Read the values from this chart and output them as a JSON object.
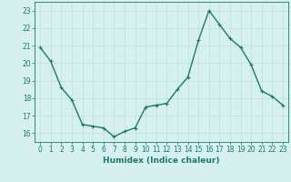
{
  "x": [
    0,
    1,
    2,
    3,
    4,
    5,
    6,
    7,
    8,
    9,
    10,
    11,
    12,
    13,
    14,
    15,
    16,
    17,
    18,
    19,
    20,
    21,
    22,
    23
  ],
  "y": [
    20.9,
    20.1,
    18.6,
    17.9,
    16.5,
    16.4,
    16.3,
    15.8,
    16.1,
    16.3,
    17.5,
    17.6,
    17.7,
    18.5,
    19.2,
    21.3,
    23.0,
    22.2,
    21.4,
    20.9,
    19.9,
    18.4,
    18.1,
    17.6
  ],
  "line_color": "#1a7a6e",
  "marker": "+",
  "marker_size": 3,
  "background_color": "#d6f0ef",
  "grid_color": "#c0dedd",
  "xlabel": "Humidex (Indice chaleur)",
  "xlim": [
    -0.5,
    23.5
  ],
  "ylim": [
    15.5,
    23.5
  ],
  "yticks": [
    16,
    17,
    18,
    19,
    20,
    21,
    22,
    23
  ],
  "xticks": [
    0,
    1,
    2,
    3,
    4,
    5,
    6,
    7,
    8,
    9,
    10,
    11,
    12,
    13,
    14,
    15,
    16,
    17,
    18,
    19,
    20,
    21,
    22,
    23
  ],
  "tick_fontsize": 5.5,
  "label_fontsize": 6.5,
  "line_width": 1.0
}
